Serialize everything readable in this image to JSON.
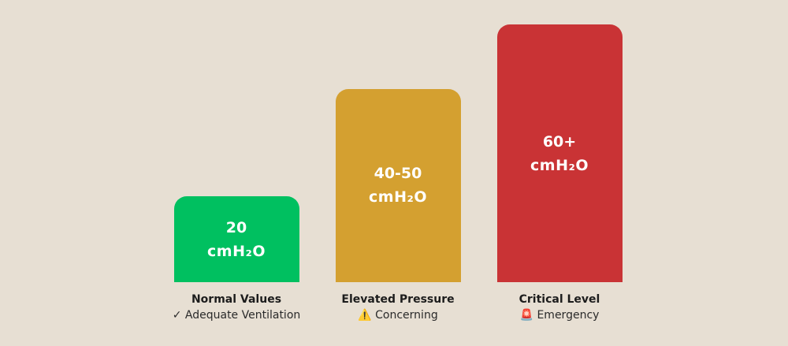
{
  "chart_data": {
    "type": "bar",
    "categories": [
      "Normal Values",
      "Elevated Pressure",
      "Critical Level"
    ],
    "values": [
      20,
      45,
      60
    ],
    "value_labels": [
      {
        "line1": "20",
        "line2": "cmH₂O"
      },
      {
        "line1": "40-50",
        "line2": "cmH₂O"
      },
      {
        "line1": "60+",
        "line2": "cmH₂O"
      }
    ],
    "subtitles": [
      "✓ Adequate Ventilation",
      "⚠️ Concerning",
      "🚨 Emergency"
    ],
    "colors": [
      "#00c060",
      "#d4a030",
      "#c93335"
    ],
    "ylim": [
      0,
      65
    ],
    "grid": false,
    "legend": "none"
  }
}
